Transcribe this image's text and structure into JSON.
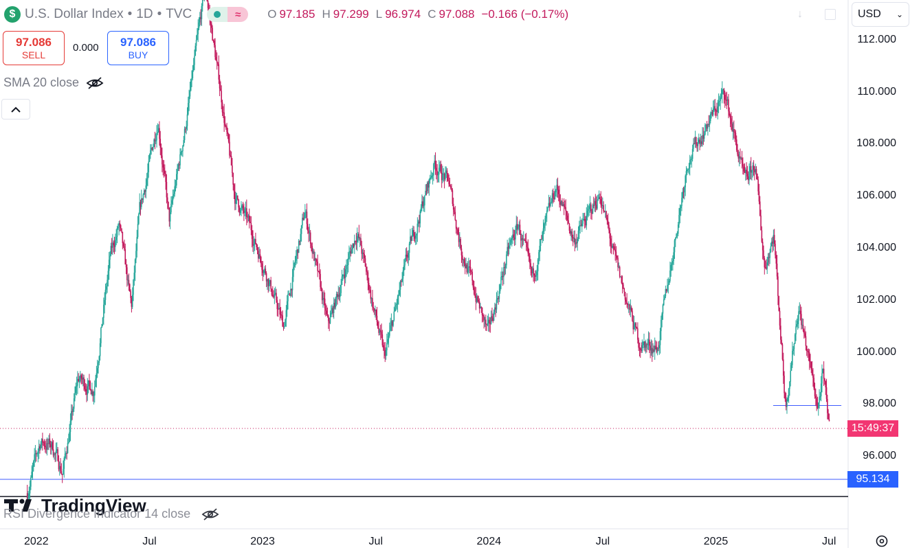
{
  "header": {
    "title": "U.S. Dollar Index",
    "interval": "1D",
    "source": "TVC",
    "logo_symbol": "$",
    "O_label": "O",
    "O": "97.185",
    "H_label": "H",
    "H": "97.299",
    "L_label": "L",
    "L": "96.974",
    "C_label": "C",
    "C": "97.088",
    "change": "−0.166 (−0.17%)"
  },
  "trade": {
    "sell_price": "97.086",
    "sell_label": "SELL",
    "spread": "0.000",
    "buy_price": "97.086",
    "buy_label": "BUY"
  },
  "indicators": {
    "sma": "SMA 20 close",
    "rsi": "RSI Divergence Indicator 14 close"
  },
  "currency": "USD",
  "watermark": "TradingView",
  "price_tags": {
    "countdown": "15:49:37",
    "level": "95.134"
  },
  "colors": {
    "up": "#26a69a",
    "down": "#c2185b",
    "hline": "#3d5afe",
    "countdown_bg": "#f23672",
    "level_bg": "#2962ff",
    "sell": "#e53935",
    "buy": "#2962ff"
  },
  "chart_data": {
    "type": "candlestick",
    "symbol": "U.S. Dollar Index",
    "interval": "1D",
    "y_ticks": [
      "112.000",
      "110.000",
      "108.000",
      "106.000",
      "104.000",
      "102.000",
      "100.000",
      "98.000",
      "96.000"
    ],
    "ylim": [
      94.5,
      113.5
    ],
    "x_ticks": [
      "2022",
      "Jul",
      "2023",
      "Jul",
      "2024",
      "Jul",
      "2025",
      "Jul"
    ],
    "horizontal_lines": [
      97.97,
      95.134
    ],
    "current_price": 97.088,
    "price_path": [
      [
        "2021-12-15",
        94.6
      ],
      [
        "2022-01-05",
        96.6
      ],
      [
        "2022-01-25",
        96.4
      ],
      [
        "2022-02-10",
        95.4
      ],
      [
        "2022-03-07",
        99.0
      ],
      [
        "2022-04-01",
        98.6
      ],
      [
        "2022-04-28",
        103.7
      ],
      [
        "2022-05-12",
        104.9
      ],
      [
        "2022-06-01",
        101.7
      ],
      [
        "2022-06-14",
        105.3
      ],
      [
        "2022-07-14",
        109.0
      ],
      [
        "2022-08-01",
        105.0
      ],
      [
        "2022-08-29",
        109.0
      ],
      [
        "2022-09-28",
        114.1
      ],
      [
        "2022-10-26",
        109.5
      ],
      [
        "2022-11-15",
        106.0
      ],
      [
        "2022-12-06",
        105.0
      ],
      [
        "2023-01-03",
        103.2
      ],
      [
        "2023-02-01",
        101.0
      ],
      [
        "2023-03-08",
        105.4
      ],
      [
        "2023-04-14",
        101.0
      ],
      [
        "2023-05-31",
        104.7
      ],
      [
        "2023-07-14",
        99.8
      ],
      [
        "2023-08-24",
        104.0
      ],
      [
        "2023-10-03",
        107.3
      ],
      [
        "2023-10-26",
        106.5
      ],
      [
        "2023-11-15",
        104.0
      ],
      [
        "2023-12-28",
        100.7
      ],
      [
        "2024-01-30",
        103.9
      ],
      [
        "2024-02-15",
        104.9
      ],
      [
        "2024-03-08",
        102.8
      ],
      [
        "2024-04-16",
        106.4
      ],
      [
        "2024-05-15",
        104.3
      ],
      [
        "2024-06-26",
        106.1
      ],
      [
        "2024-07-17",
        103.8
      ],
      [
        "2024-08-27",
        100.4
      ],
      [
        "2024-09-27",
        100.2
      ],
      [
        "2024-11-14",
        107.4
      ],
      [
        "2025-01-13",
        110.0
      ],
      [
        "2025-02-14",
        106.5
      ],
      [
        "2025-03-03",
        107.2
      ],
      [
        "2025-03-18",
        103.3
      ],
      [
        "2025-04-02",
        104.6
      ],
      [
        "2025-04-21",
        98.0
      ],
      [
        "2025-05-12",
        101.8
      ],
      [
        "2025-06-12",
        97.9
      ],
      [
        "2025-06-20",
        99.1
      ],
      [
        "2025-07-01",
        97.088
      ]
    ]
  }
}
